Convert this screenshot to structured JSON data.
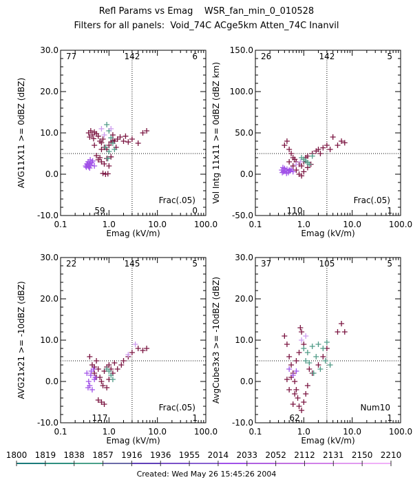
{
  "header": {
    "title": "Refl Params vs Emag    WSR_fan_min_0_010528",
    "filters": "Filters for all panels:  Void_74C ACge5km Atten_74C Inanvil"
  },
  "footer": {
    "created": "Created: Wed May 26 15:45:26 2004"
  },
  "colors": {
    "dark": "#7a1440",
    "violet": "#a050e8",
    "teal": "#4f9a86",
    "lavender": "#cc99ee"
  },
  "timebar": {
    "labels": [
      "1800",
      "1819",
      "1838",
      "1857",
      "1916",
      "1936",
      "1955",
      "2014",
      "2033",
      "2052",
      "2112",
      "2131",
      "2150",
      "2210"
    ]
  },
  "chart_data": [
    {
      "type": "scatter",
      "xlabel": "Emag (kV/m)",
      "ylabel": "AVG11X11 >= 0dBZ (dBZ)",
      "xscale": "log",
      "xlim": [
        0.1,
        100.0
      ],
      "ylim": [
        -10,
        30
      ],
      "xticks": [
        "0.1",
        "1.0",
        "10.0",
        "100.0"
      ],
      "yticks": [
        "-10.0",
        "0.0",
        "10.0",
        "20.0",
        "30.0"
      ],
      "ref_x": 3.0,
      "ref_y": 5.0,
      "quadrant_counts": {
        "top_left": "77",
        "top_mid": "142",
        "top_right": "6",
        "bottom_mid": "59",
        "bottom_right": "0"
      },
      "annotation": "Frac(.05)",
      "series": [
        {
          "color": "dark",
          "points": [
            [
              0.38,
              10.0
            ],
            [
              0.42,
              10.5
            ],
            [
              0.45,
              9.5
            ],
            [
              0.5,
              10.2
            ],
            [
              0.55,
              9.8
            ],
            [
              0.4,
              9.0
            ],
            [
              0.48,
              8.6
            ],
            [
              0.6,
              9.2
            ],
            [
              0.65,
              8.0
            ],
            [
              0.7,
              7.6
            ],
            [
              0.75,
              8.5
            ],
            [
              0.8,
              6.5
            ],
            [
              0.9,
              6.0
            ],
            [
              1.0,
              7.0
            ],
            [
              1.1,
              7.8
            ],
            [
              1.2,
              8.2
            ],
            [
              1.3,
              8.0
            ],
            [
              1.5,
              8.5
            ],
            [
              1.7,
              9.0
            ],
            [
              2.0,
              8.0
            ],
            [
              2.5,
              7.8
            ],
            [
              3.0,
              8.5
            ],
            [
              4.0,
              7.5
            ],
            [
              5.0,
              10.0
            ],
            [
              6.0,
              10.5
            ],
            [
              0.6,
              3.5
            ],
            [
              0.7,
              3.0
            ],
            [
              0.8,
              2.5
            ],
            [
              0.9,
              3.8
            ],
            [
              0.55,
              4.5
            ],
            [
              0.65,
              4.0
            ],
            [
              1.0,
              2.0
            ],
            [
              1.1,
              4.2
            ],
            [
              0.75,
              0.2
            ],
            [
              0.85,
              0.0
            ],
            [
              0.95,
              0.1
            ],
            [
              0.7,
              6.0
            ],
            [
              1.2,
              9.5
            ],
            [
              0.5,
              7.0
            ],
            [
              1.4,
              6.5
            ],
            [
              2.2,
              9.2
            ]
          ]
        },
        {
          "color": "violet",
          "points": [
            [
              0.33,
              2.0
            ],
            [
              0.35,
              2.5
            ],
            [
              0.37,
              3.0
            ],
            [
              0.4,
              1.5
            ],
            [
              0.42,
              2.2
            ],
            [
              0.44,
              2.8
            ],
            [
              0.38,
              1.8
            ],
            [
              0.36,
              2.4
            ],
            [
              0.46,
              3.2
            ],
            [
              0.5,
              2.0
            ],
            [
              0.34,
              1.7
            ],
            [
              0.41,
              3.5
            ],
            [
              0.39,
              2.6
            ]
          ]
        },
        {
          "color": "teal",
          "points": [
            [
              0.9,
              12.0
            ],
            [
              1.0,
              10.5
            ],
            [
              1.1,
              8.8
            ],
            [
              1.2,
              7.5
            ],
            [
              1.0,
              5.5
            ],
            [
              0.85,
              6.5
            ],
            [
              1.3,
              6.0
            ],
            [
              0.95,
              3.8
            ]
          ]
        },
        {
          "color": "lavender",
          "points": [
            [
              0.7,
              11.0
            ],
            [
              0.8,
              9.5
            ],
            [
              1.1,
              11.0
            ]
          ]
        }
      ]
    },
    {
      "type": "scatter",
      "xlabel": "Emag (kV/m)",
      "ylabel": "Vol Intg 11x11 >= 0dBZ (dBZ km)",
      "xscale": "log",
      "xlim": [
        0.1,
        100.0
      ],
      "ylim": [
        -50,
        150
      ],
      "xticks": [
        "0.1",
        "1.0",
        "10.0",
        "100.0"
      ],
      "yticks": [
        "-50.0",
        "0.0",
        "50.0",
        "100.0",
        "150.0"
      ],
      "ref_x": 3.0,
      "ref_y": 25.0,
      "quadrant_counts": {
        "top_left": "26",
        "top_mid": "142",
        "top_right": "5",
        "bottom_mid": "110",
        "bottom_right": "1"
      },
      "annotation": "Frac(.05)",
      "series": [
        {
          "color": "dark",
          "points": [
            [
              0.4,
              35.0
            ],
            [
              0.45,
              40.0
            ],
            [
              0.5,
              30.0
            ],
            [
              0.55,
              25.0
            ],
            [
              0.6,
              20.0
            ],
            [
              0.65,
              18.0
            ],
            [
              0.7,
              15.0
            ],
            [
              0.8,
              12.0
            ],
            [
              0.9,
              10.0
            ],
            [
              1.0,
              15.0
            ],
            [
              1.1,
              20.0
            ],
            [
              1.2,
              22.0
            ],
            [
              1.5,
              25.0
            ],
            [
              1.8,
              28.0
            ],
            [
              2.0,
              30.0
            ],
            [
              2.5,
              32.0
            ],
            [
              3.0,
              35.0
            ],
            [
              3.5,
              30.0
            ],
            [
              4.0,
              45.0
            ],
            [
              5.0,
              35.0
            ],
            [
              6.0,
              40.0
            ],
            [
              7.0,
              38.0
            ],
            [
              0.7,
              5.0
            ],
            [
              0.8,
              0.0
            ],
            [
              0.9,
              -2.0
            ],
            [
              1.0,
              3.0
            ],
            [
              1.2,
              8.0
            ],
            [
              0.6,
              10.0
            ],
            [
              0.5,
              15.0
            ],
            [
              1.4,
              12.0
            ],
            [
              2.2,
              25.0
            ]
          ]
        },
        {
          "color": "violet",
          "points": [
            [
              0.35,
              5.0
            ],
            [
              0.38,
              3.0
            ],
            [
              0.4,
              7.0
            ],
            [
              0.42,
              4.0
            ],
            [
              0.45,
              6.0
            ],
            [
              0.48,
              2.0
            ],
            [
              0.5,
              5.0
            ],
            [
              0.37,
              8.0
            ],
            [
              0.44,
              1.0
            ],
            [
              0.52,
              4.0
            ],
            [
              0.36,
              2.0
            ],
            [
              0.55,
              6.0
            ],
            [
              0.6,
              3.0
            ]
          ]
        },
        {
          "color": "teal",
          "points": [
            [
              0.9,
              20.0
            ],
            [
              1.0,
              18.0
            ],
            [
              1.1,
              16.0
            ],
            [
              1.2,
              14.0
            ],
            [
              1.3,
              12.0
            ],
            [
              1.5,
              22.0
            ]
          ]
        },
        {
          "color": "lavender",
          "points": [
            [
              0.7,
              12.0
            ],
            [
              0.85,
              15.0
            ]
          ]
        }
      ]
    },
    {
      "type": "scatter",
      "xlabel": "Emag (kV/m)",
      "ylabel": "AVG21x21 >= -10dBZ (dBZ)",
      "xscale": "log",
      "xlim": [
        0.1,
        100.0
      ],
      "ylim": [
        -10,
        30
      ],
      "xticks": [
        "0.1",
        "1.0",
        "10.0",
        "100.0"
      ],
      "yticks": [
        "-10.0",
        "0.0",
        "10.0",
        "20.0",
        "30.0"
      ],
      "ref_x": 3.0,
      "ref_y": 5.0,
      "quadrant_counts": {
        "top_left": "22",
        "top_mid": "145",
        "top_right": "5",
        "bottom_mid": "117",
        "bottom_right": "1"
      },
      "annotation": "Frac(.05)",
      "series": [
        {
          "color": "dark",
          "points": [
            [
              0.4,
              6.0
            ],
            [
              0.45,
              4.0
            ],
            [
              0.5,
              2.0
            ],
            [
              0.55,
              5.0
            ],
            [
              0.6,
              3.0
            ],
            [
              0.65,
              1.0
            ],
            [
              0.7,
              0.0
            ],
            [
              0.75,
              -1.0
            ],
            [
              0.8,
              2.5
            ],
            [
              0.9,
              3.5
            ],
            [
              1.0,
              4.0
            ],
            [
              1.1,
              3.0
            ],
            [
              1.2,
              2.0
            ],
            [
              1.3,
              4.5
            ],
            [
              1.5,
              3.0
            ],
            [
              1.8,
              4.0
            ],
            [
              2.0,
              5.0
            ],
            [
              2.5,
              6.0
            ],
            [
              3.0,
              7.0
            ],
            [
              4.0,
              8.0
            ],
            [
              5.0,
              7.5
            ],
            [
              6.0,
              8.0
            ],
            [
              0.7,
              -5.0
            ],
            [
              0.8,
              -5.5
            ],
            [
              0.6,
              -4.5
            ],
            [
              0.9,
              -1.5
            ],
            [
              1.0,
              0.5
            ],
            [
              0.55,
              1.0
            ],
            [
              0.5,
              3.5
            ]
          ]
        },
        {
          "color": "violet",
          "points": [
            [
              0.35,
              2.0
            ],
            [
              0.38,
              0.0
            ],
            [
              0.4,
              -1.0
            ],
            [
              0.42,
              1.5
            ],
            [
              0.45,
              -2.0
            ],
            [
              0.5,
              0.5
            ],
            [
              0.37,
              -1.5
            ],
            [
              0.43,
              2.5
            ],
            [
              0.48,
              3.0
            ],
            [
              0.52,
              1.0
            ]
          ]
        },
        {
          "color": "teal",
          "points": [
            [
              0.9,
              3.0
            ],
            [
              1.0,
              2.5
            ],
            [
              1.1,
              1.5
            ],
            [
              1.2,
              0.5
            ]
          ]
        },
        {
          "color": "lavender",
          "points": [
            [
              3.5,
              9.0
            ],
            [
              2.5,
              6.5
            ]
          ]
        }
      ]
    },
    {
      "type": "scatter",
      "xlabel": "Emag (kV/m)",
      "ylabel": "AvgCube3x3 >= -10dBZ (dBZ)",
      "xscale": "log",
      "xlim": [
        0.1,
        100.0
      ],
      "ylim": [
        -10,
        30
      ],
      "xticks": [
        "0.1",
        "1.0",
        "10.0",
        "100.0"
      ],
      "yticks": [
        "-10.0",
        "0.0",
        "10.0",
        "20.0",
        "30.0"
      ],
      "ref_x": 3.0,
      "ref_y": 5.0,
      "quadrant_counts": {
        "top_left": "37",
        "top_mid": "105",
        "top_right": "5",
        "bottom_mid": "62",
        "bottom_right": "1"
      },
      "annotation": "Num10",
      "series": [
        {
          "color": "dark",
          "points": [
            [
              0.4,
              11.0
            ],
            [
              0.45,
              9.0
            ],
            [
              0.5,
              6.0
            ],
            [
              0.55,
              4.0
            ],
            [
              0.6,
              2.0
            ],
            [
              0.65,
              0.0
            ],
            [
              0.7,
              -2.0
            ],
            [
              0.75,
              -4.0
            ],
            [
              0.8,
              -6.0
            ],
            [
              0.9,
              -7.0
            ],
            [
              1.0,
              -5.0
            ],
            [
              1.1,
              -3.0
            ],
            [
              1.2,
              -1.0
            ],
            [
              1.5,
              2.0
            ],
            [
              2.0,
              4.0
            ],
            [
              2.5,
              6.0
            ],
            [
              3.0,
              8.0
            ],
            [
              5.0,
              12.0
            ],
            [
              6.0,
              14.0
            ],
            [
              7.0,
              12.0
            ],
            [
              0.85,
              13.0
            ],
            [
              0.9,
              12.0
            ],
            [
              1.0,
              9.0
            ],
            [
              0.5,
              -2.0
            ],
            [
              0.45,
              0.5
            ],
            [
              0.6,
              -5.5
            ],
            [
              0.7,
              5.0
            ],
            [
              0.8,
              7.0
            ],
            [
              1.3,
              3.0
            ],
            [
              0.55,
              1.0
            ],
            [
              0.65,
              -3.0
            ]
          ]
        },
        {
          "color": "violet",
          "points": [
            [
              0.5,
              3.0
            ],
            [
              0.6,
              1.5
            ],
            [
              0.7,
              2.5
            ]
          ]
        },
        {
          "color": "teal",
          "points": [
            [
              1.0,
              8.0
            ],
            [
              1.2,
              7.0
            ],
            [
              1.5,
              8.5
            ],
            [
              2.0,
              9.0
            ],
            [
              2.5,
              8.0
            ],
            [
              3.0,
              9.5
            ],
            [
              1.1,
              5.0
            ],
            [
              1.3,
              4.5
            ],
            [
              1.8,
              6.0
            ],
            [
              2.2,
              3.0
            ],
            [
              2.8,
              5.0
            ],
            [
              1.6,
              2.0
            ],
            [
              3.5,
              4.0
            ]
          ]
        },
        {
          "color": "lavender",
          "points": [
            [
              0.9,
              10.0
            ],
            [
              1.1,
              11.0
            ]
          ]
        }
      ]
    }
  ]
}
